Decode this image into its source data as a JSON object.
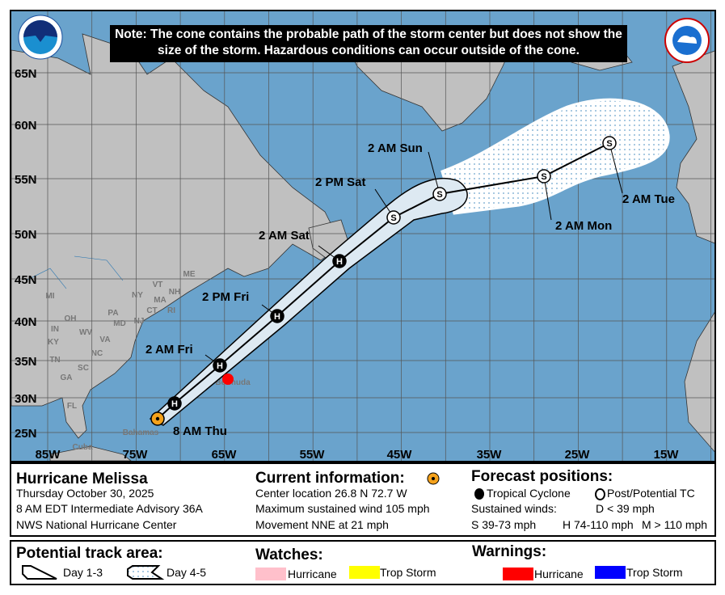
{
  "note": "Note: The cone contains the probable path of the storm center but does not show the size of the storm. Hazardous conditions can occur outside of the cone.",
  "logos": {
    "left": "NOAA",
    "right": "NATIONAL WEATHER SERVICE"
  },
  "lat_labels": [
    "65N",
    "60N",
    "55N",
    "50N",
    "45N",
    "40N",
    "35N",
    "30N",
    "25N"
  ],
  "lon_labels": [
    "85W",
    "75W",
    "65W",
    "55W",
    "45W",
    "35W",
    "25W",
    "15W"
  ],
  "place_labels": {
    "states": [
      "MI",
      "NY",
      "VT",
      "NH",
      "MA",
      "CT",
      "RI",
      "ME",
      "OH",
      "PA",
      "IN",
      "WV",
      "VA",
      "MD",
      "NJ",
      "KY",
      "TN",
      "NC",
      "SC",
      "GA",
      "FL"
    ],
    "islands": [
      "Bermuda",
      "Bahamas",
      "Cuba"
    ]
  },
  "track": [
    {
      "label": "8 AM Thu",
      "type": "current"
    },
    {
      "label": "",
      "type": "H"
    },
    {
      "label": "2 AM Fri",
      "type": "H"
    },
    {
      "label": "2 PM Fri",
      "type": "H"
    },
    {
      "label": "2 AM Sat",
      "type": "H"
    },
    {
      "label": "2 PM Sat",
      "type": "S"
    },
    {
      "label": "2 AM Sun",
      "type": "S"
    },
    {
      "label": "2 AM Mon",
      "type": "S"
    },
    {
      "label": "2 AM Tue",
      "type": "S"
    }
  ],
  "colors": {
    "ocean": "#6aa3cc",
    "land": "#c0c0c0",
    "cone": "#dde9f2",
    "current": "#f5a21b",
    "hurricane_warning": "#ff0000",
    "hurricane_watch": "#ffc0cb",
    "ts_watch": "#ffff00",
    "ts_warning": "#0000ff"
  },
  "info": {
    "storm": "Hurricane Melissa",
    "date": "Thursday October 30, 2025",
    "advisory": "8 AM EDT Intermediate Advisory 36A",
    "center": "NWS National Hurricane Center",
    "current_title": "Current information:",
    "location": "Center location 26.8 N 72.7 W",
    "wind": "Maximum sustained wind 105 mph",
    "movement": "Movement NNE at 21 mph",
    "forecast_title": "Forecast positions:",
    "tc": "Tropical Cyclone",
    "post": "Post/Potential TC",
    "sustained": "Sustained winds:",
    "d": "D < 39 mph",
    "s": "S 39-73 mph",
    "h": "H 74-110 mph",
    "m": "M > 110 mph"
  },
  "legend": {
    "track_title": "Potential track area:",
    "day13": "Day 1-3",
    "day45": "Day 4-5",
    "watches_title": "Watches:",
    "warnings_title": "Warnings:",
    "hurricane": "Hurricane",
    "trop_storm": "Trop Storm"
  }
}
